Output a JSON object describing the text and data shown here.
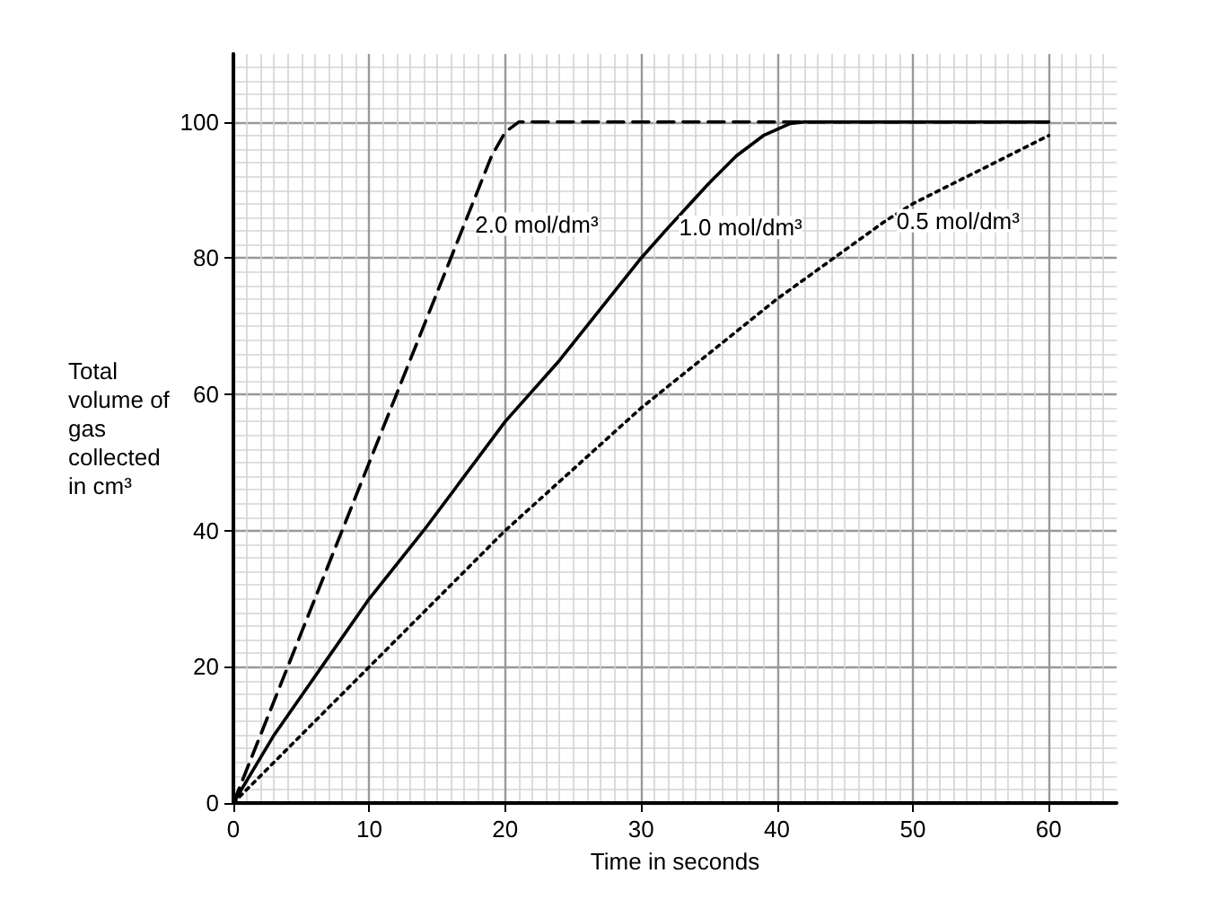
{
  "chart_data": {
    "type": "line",
    "xlabel": "Time in seconds",
    "ylabel": "Total volume of gas collected in cm³",
    "xlim": [
      0,
      65
    ],
    "ylim": [
      0,
      110
    ],
    "xticks": [
      0,
      10,
      20,
      30,
      40,
      50,
      60
    ],
    "yticks": [
      0,
      20,
      40,
      60,
      80,
      100
    ],
    "grid": true,
    "legend": false,
    "marker": "none",
    "series": [
      {
        "name": "2.0 mol/dm³",
        "color": "#000000",
        "line_style": "dashed",
        "x": [
          0,
          5,
          10,
          15,
          17,
          18,
          19,
          20,
          21,
          30,
          40,
          50,
          60
        ],
        "values": [
          0,
          25,
          50,
          75,
          85,
          90,
          95,
          98.5,
          100,
          100,
          100,
          100,
          100
        ]
      },
      {
        "name": "1.0 mol/dm³",
        "color": "#000000",
        "line_style": "solid",
        "x": [
          0,
          3,
          6.5,
          10,
          14,
          20,
          24,
          30,
          32,
          35,
          37,
          39,
          41,
          42,
          50,
          60
        ],
        "values": [
          0,
          10,
          20,
          30,
          40,
          56,
          65,
          80,
          84.5,
          91,
          95,
          98,
          99.8,
          100,
          100,
          100
        ]
      },
      {
        "name": "0.5 mol/dm³",
        "color": "#000000",
        "line_style": "dotted",
        "x": [
          0,
          10,
          20,
          30,
          40,
          48,
          50,
          60
        ],
        "values": [
          0,
          20,
          40,
          58,
          74,
          85.5,
          88,
          98
        ]
      }
    ]
  }
}
